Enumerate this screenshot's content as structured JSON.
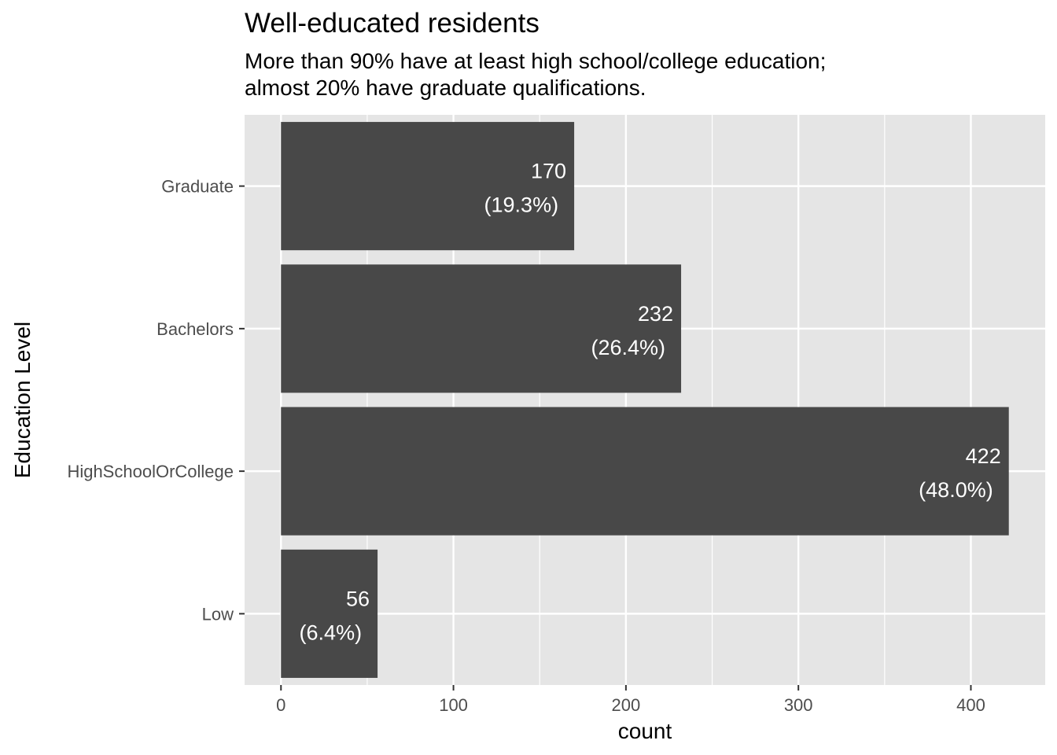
{
  "chart_data": {
    "type": "bar",
    "orientation": "horizontal",
    "title": "Well-educated residents",
    "subtitle_lines": [
      "More than 90% have at least high school/college education;",
      "almost 20% have graduate qualifications."
    ],
    "xlabel": "count",
    "ylabel": "Education Level",
    "categories": [
      "Low",
      "HighSchoolOrCollege",
      "Bachelors",
      "Graduate"
    ],
    "values": [
      56,
      422,
      232,
      170
    ],
    "value_labels": [
      "56",
      "422",
      "232",
      "170"
    ],
    "percent_labels": [
      "(6.4%)",
      "(48.0%)",
      "(26.4%)",
      "(19.3%)"
    ],
    "xlim": [
      -21.1,
      443.1
    ],
    "x_ticks": [
      0,
      100,
      200,
      300,
      400
    ],
    "x_tick_labels": [
      "0",
      "100",
      "200",
      "300",
      "400"
    ],
    "grid": true,
    "legend": "none",
    "colors": {
      "panel_background": "#e5e5e5",
      "grid": "#ffffff",
      "bar": "#484848",
      "bar_label": "#ffffff",
      "axis_text": "#4d4d4d",
      "axis_title": "#000000"
    }
  }
}
